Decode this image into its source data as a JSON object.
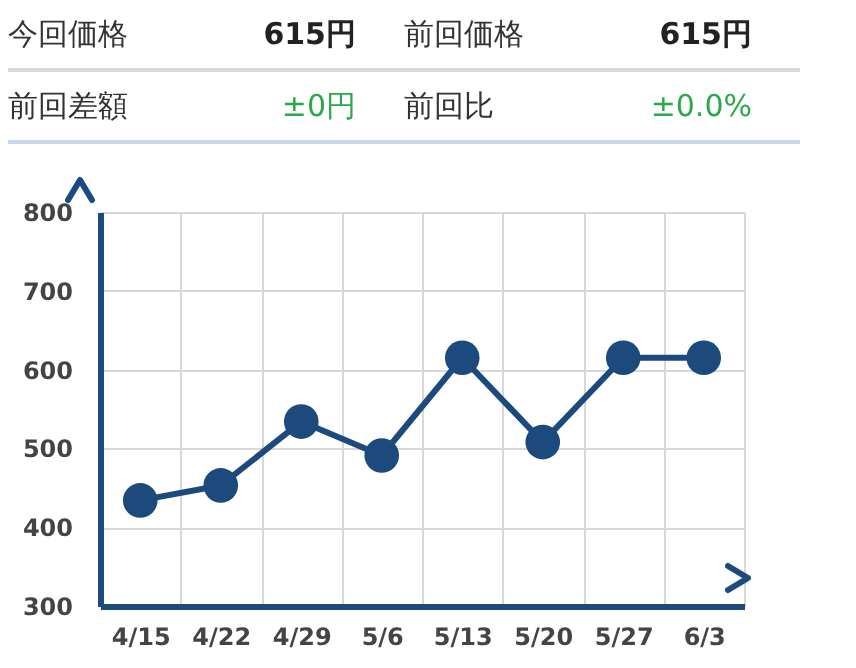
{
  "chart_data": [
    {
      "type": "other",
      "annotations": [
        "今回価格",
        "615円",
        "前回価格",
        "615円",
        "前回差額",
        "±0円",
        "前回比",
        "±0.0%"
      ]
    },
    {
      "type": "line",
      "categories": [
        "4/15",
        "4/22",
        "4/29",
        "5/6",
        "5/13",
        "5/20",
        "5/27",
        "6/3"
      ],
      "series": [
        {
          "color": "#1d4a7c",
          "values": [
            434,
            453,
            534,
            491,
            615,
            508,
            615,
            615
          ]
        }
      ],
      "ylim": [
        300,
        800
      ],
      "yticks": [
        300,
        400,
        500,
        600,
        700,
        800
      ],
      "grid": true,
      "marker": "circle",
      "line_style": "solid"
    }
  ]
}
